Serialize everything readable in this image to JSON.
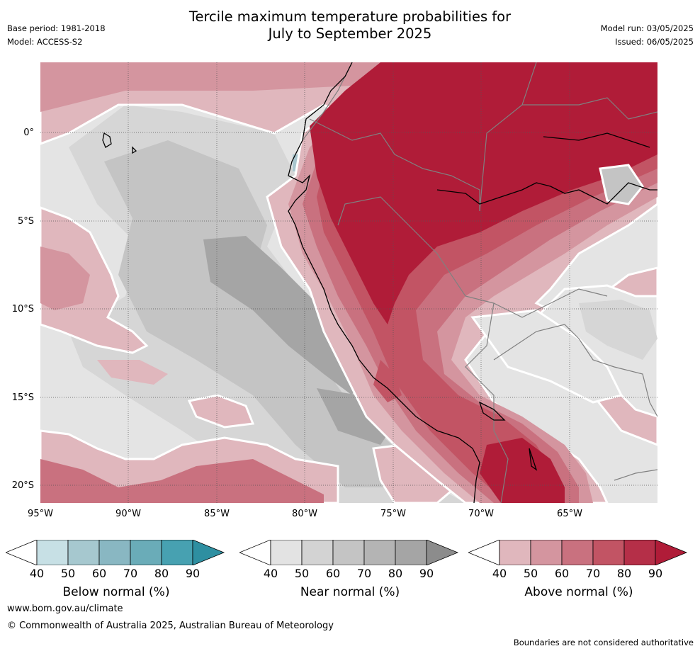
{
  "header": {
    "title_line1": "Tercile maximum temperature probabilities for",
    "title_line2": "July to September 2025",
    "base_period": "Base period: 1981-2018",
    "model": "Model: ACCESS-S2",
    "model_run": "Model run: 03/05/2025",
    "issued": "Issued: 06/05/2025"
  },
  "map": {
    "lat_labels": [
      "0°",
      "5°S",
      "10°S",
      "15°S",
      "20°S"
    ],
    "lon_labels": [
      "95°W",
      "90°W",
      "85°W",
      "80°W",
      "75°W",
      "70°W",
      "65°W"
    ],
    "colors": {
      "ocean_light": "#e4e4e4",
      "near_1": "#d6d6d6",
      "near_2": "#c4c4c4",
      "near_3": "#b0b0b0",
      "near_4": "#a5a5a5",
      "above_1": "#e0b7bd",
      "above_2": "#d4959f",
      "above_3": "#c9717f",
      "above_4": "#c25464",
      "above_5": "#b52f48",
      "above_6": "#b01c38",
      "below_1": "#a9c6ce",
      "coast": "#000000",
      "border": "#808080"
    }
  },
  "colorbars": [
    {
      "label": "Below normal (%)",
      "ticks": [
        "40",
        "50",
        "60",
        "70",
        "80",
        "90"
      ],
      "colors": [
        "#ffffff",
        "#c7e0e5",
        "#a6c8cf",
        "#89b7c2",
        "#6aacb8",
        "#47a1b1",
        "#2e8fa1"
      ]
    },
    {
      "label": "Near normal (%)",
      "ticks": [
        "40",
        "50",
        "60",
        "70",
        "80",
        "90"
      ],
      "colors": [
        "#ffffff",
        "#e3e3e3",
        "#d3d3d3",
        "#c4c4c4",
        "#b4b4b4",
        "#a5a5a5",
        "#8c8c8c"
      ]
    },
    {
      "label": "Above normal (%)",
      "ticks": [
        "40",
        "50",
        "60",
        "70",
        "80",
        "90"
      ],
      "colors": [
        "#ffffff",
        "#e0b7bd",
        "#d4959f",
        "#c9717f",
        "#c25464",
        "#b52f48",
        "#b01c38"
      ]
    }
  ],
  "footer": {
    "url": "www.bom.gov.au/climate",
    "copyright": "© Commonwealth of Australia 2025, Australian Bureau of Meteorology",
    "disclaimer": "Boundaries are not considered authoritative"
  }
}
